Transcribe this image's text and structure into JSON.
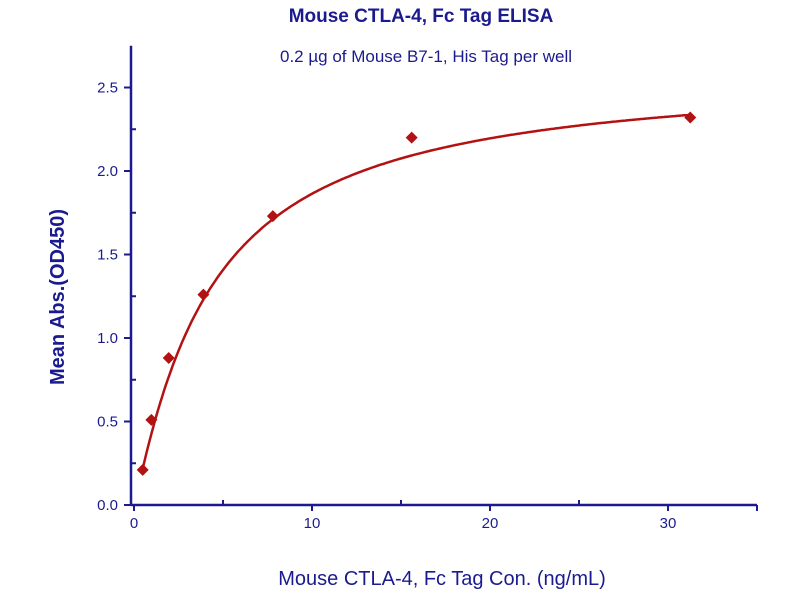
{
  "chart_data": {
    "type": "scatter",
    "title": "Mouse CTLA-4, Fc Tag ELISA",
    "subtitle": "0.2 µg of Mouse B7-1, His Tag per well",
    "xlabel": "Mouse CTLA-4, Fc Tag Con. (ng/mL)",
    "ylabel": "Mean Abs.(OD450)",
    "xlim": [
      0,
      35
    ],
    "ylim": [
      0,
      2.75
    ],
    "xticks": [
      "0",
      "10",
      "20",
      "30"
    ],
    "yticks": [
      "0.0",
      "0.5",
      "1.0",
      "1.5",
      "2.0",
      "2.5"
    ],
    "grid": false,
    "series": [
      {
        "x": [
          0.488,
          0.977,
          1.95,
          3.9,
          7.8,
          15.6,
          31.25
        ],
        "y": [
          0.21,
          0.51,
          0.88,
          1.26,
          1.73,
          2.2,
          2.32
        ],
        "marker": "diamond",
        "fit_curve": true
      }
    ],
    "colors": {
      "axis": "#1b1b8f",
      "series": "#b31212"
    }
  }
}
